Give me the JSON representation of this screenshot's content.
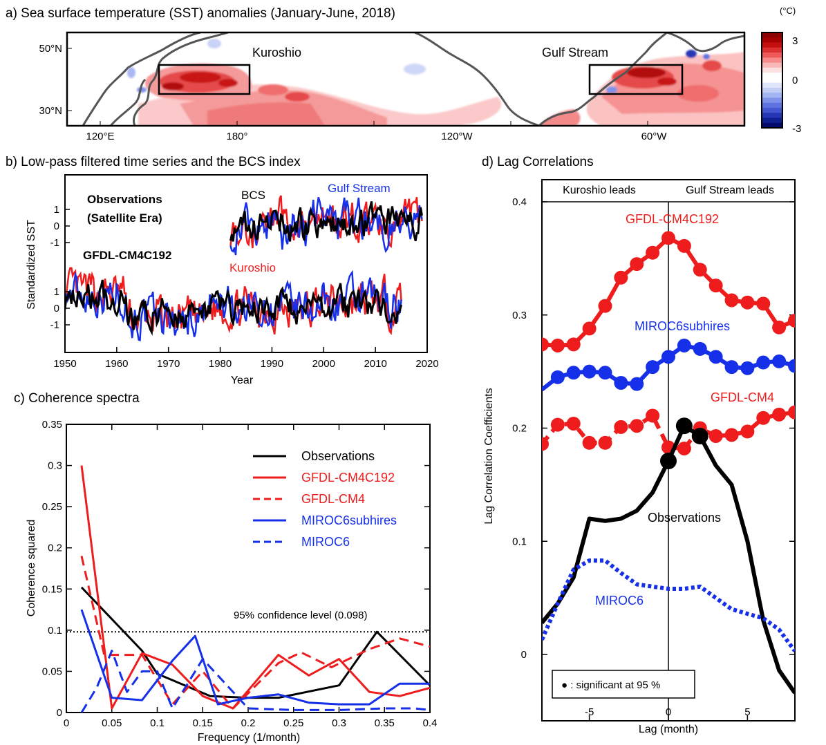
{
  "panels": {
    "a": {
      "title": "a) Sea surface temperature (SST) anomalies (January-June, 2018)",
      "unit": "(°C)",
      "colorbar_ticks": [
        "3",
        "0",
        "-3"
      ],
      "colorbar_colors": [
        "#8b0000",
        "#a60000",
        "#c50f0f",
        "#dd3030",
        "#ee5a5a",
        "#f78a8a",
        "#fbb8b8",
        "#fde1e1",
        "#ffffff",
        "#ffffff",
        "#dfe5fb",
        "#c3cef7",
        "#a3b4f2",
        "#8093ea",
        "#5f73e0",
        "#4256d0",
        "#2537b5",
        "#102090",
        "#040a6b"
      ],
      "y_ticks": [
        "50°N",
        "30°N"
      ],
      "x_ticks": [
        "120°E",
        "180°",
        "120°W",
        "60°W"
      ],
      "labels": {
        "kuroshio": "Kuroshio",
        "gulf_stream": "Gulf Stream"
      }
    },
    "b": {
      "title": "b) Low-pass filtered time series and the BCS index",
      "obs_label_1": "Observations",
      "obs_label_2": "(Satellite Era)",
      "model_label": "GFDL-CM4C192",
      "bcs_label": "BCS",
      "gulf_label": "Gulf Stream",
      "kuroshio_label": "Kuroshio",
      "ylabel": "Standardized SST",
      "xlabel": "Year",
      "y_ticks": [
        "1",
        "0",
        "-1"
      ],
      "x_ticks": [
        "1950",
        "1960",
        "1970",
        "1980",
        "1990",
        "2000",
        "2010",
        "2020"
      ]
    },
    "c": {
      "title": "c) Coherence spectra",
      "conf_label": "95% confidence level (0.098)",
      "xlabel": "Frequency (1/month)",
      "ylabel": "Coherence squared",
      "x_ticks": [
        "0",
        "0.05",
        "0.1",
        "0.15",
        "0.2",
        "0.25",
        "0.3",
        "0.35",
        "0.4"
      ],
      "y_ticks": [
        "0",
        "0.05",
        "0.1",
        "0.15",
        "0.2",
        "0.25",
        "0.3",
        "0.35"
      ],
      "legend": [
        "Observations",
        "GFDL-CM4C192",
        "GFDL-CM4",
        "MIROC6subhires",
        "MIROC6"
      ]
    },
    "d": {
      "title": "d) Lag Correlations",
      "kuroshio_leads": "Kuroshio leads",
      "gulf_leads": "Gulf Stream leads",
      "xlabel": "Lag (month)",
      "ylabel": "Lag Correlation Coefficients",
      "x_ticks": [
        "-5",
        "0",
        "5"
      ],
      "y_ticks": [
        "0.4",
        "0.3",
        "0.2",
        "0.1",
        "0"
      ],
      "labels": {
        "gfdl_c192": "GFDL-CM4C192",
        "miroc_sub": "MIROC6subhires",
        "gfdl_cm4": "GFDL-CM4",
        "obs": "Observations",
        "miroc6": "MIROC6"
      },
      "sig_legend": "● : significant at 95 %"
    }
  },
  "colors": {
    "obs": "#000000",
    "red": "#ee1c1c",
    "blue": "#1530e8"
  },
  "chart_data": [
    {
      "type": "heatmap",
      "title": "a) Sea surface temperature (SST) anomalies (January-June, 2018)",
      "colorbar_range": [
        -3,
        3
      ],
      "colorbar_unit": "(°C)",
      "boxes": [
        "Kuroshio",
        "Gulf Stream"
      ]
    },
    {
      "type": "line",
      "title": "b) Low-pass filtered time series and the BCS index",
      "xlabel": "Year",
      "ylabel": "Standardized SST",
      "xlim": [
        1950,
        2020
      ],
      "series": [
        {
          "name": "BCS",
          "color": "#000000"
        },
        {
          "name": "Gulf Stream",
          "color": "#1530e8"
        },
        {
          "name": "Kuroshio",
          "color": "#ee1c1c"
        }
      ]
    },
    {
      "type": "line",
      "title": "c) Coherence spectra",
      "xlabel": "Frequency (1/month)",
      "ylabel": "Coherence squared",
      "xlim": [
        0,
        0.4
      ],
      "ylim": [
        0,
        0.35
      ],
      "confidence_level": 0.098,
      "series": [
        {
          "name": "Observations",
          "style": "solid",
          "color": "#000000",
          "x": [
            0.0167,
            0.0833,
            0.1,
            0.1583,
            0.2,
            0.2333,
            0.3,
            0.3417,
            0.4
          ],
          "y": [
            0.152,
            0.075,
            0.047,
            0.02,
            0.018,
            0.018,
            0.033,
            0.098,
            0.033
          ]
        },
        {
          "name": "GFDL-CM4C192",
          "style": "solid",
          "color": "#ee1c1c",
          "x": [
            0.0167,
            0.05,
            0.0833,
            0.1167,
            0.15,
            0.1833,
            0.2333,
            0.2667,
            0.3,
            0.3333,
            0.3667,
            0.4
          ],
          "y": [
            0.3,
            0.005,
            0.072,
            0.058,
            0.02,
            0.005,
            0.07,
            0.045,
            0.065,
            0.025,
            0.02,
            0.03
          ]
        },
        {
          "name": "GFDL-CM4",
          "style": "dashed",
          "color": "#ee1c1c",
          "x": [
            0.0167,
            0.0417,
            0.0833,
            0.1167,
            0.15,
            0.1833,
            0.2333,
            0.2583,
            0.2917,
            0.3333,
            0.3667,
            0.4
          ],
          "y": [
            0.19,
            0.07,
            0.07,
            0.01,
            0.05,
            0.005,
            0.06,
            0.073,
            0.055,
            0.077,
            0.09,
            0.08
          ]
        },
        {
          "name": "MIROC6subhires",
          "style": "solid",
          "color": "#1530e8",
          "x": [
            0.0167,
            0.05,
            0.0833,
            0.1167,
            0.1417,
            0.1667,
            0.2,
            0.2333,
            0.2667,
            0.3,
            0.3333,
            0.3667,
            0.4
          ],
          "y": [
            0.125,
            0.018,
            0.015,
            0.063,
            0.093,
            0.01,
            0.018,
            0.022,
            0.012,
            0.01,
            0.01,
            0.035,
            0.035
          ]
        },
        {
          "name": "MIROC6",
          "style": "dashed",
          "color": "#1530e8",
          "x": [
            0.0167,
            0.0333,
            0.05,
            0.0667,
            0.0833,
            0.1,
            0.1167,
            0.15,
            0.2,
            0.25,
            0.3,
            0.35,
            0.3833,
            0.4
          ],
          "y": [
            0.0,
            0.03,
            0.075,
            0.025,
            0.05,
            0.05,
            0.005,
            0.065,
            0.005,
            0.003,
            0.003,
            0.005,
            0.005,
            0.003
          ]
        }
      ]
    },
    {
      "type": "line",
      "title": "d) Lag Correlations",
      "xlabel": "Lag (month)",
      "ylabel": "Lag Correlation Coefficients",
      "xlim": [
        -8,
        8
      ],
      "ylim": [
        -0.04,
        0.4
      ],
      "series": [
        {
          "name": "GFDL-CM4C192",
          "style": "solid",
          "color": "#ee1c1c",
          "x": [
            -8,
            -7,
            -6,
            -5,
            -4,
            -3,
            -2,
            -1,
            0,
            1,
            2,
            3,
            4,
            5,
            6,
            7,
            8
          ],
          "y": [
            0.274,
            0.273,
            0.274,
            0.288,
            0.308,
            0.333,
            0.345,
            0.355,
            0.368,
            0.361,
            0.34,
            0.326,
            0.313,
            0.311,
            0.31,
            0.289,
            0.295
          ],
          "significant": [
            true,
            true,
            true,
            true,
            true,
            true,
            true,
            true,
            true,
            true,
            true,
            true,
            true,
            true,
            true,
            true,
            true
          ]
        },
        {
          "name": "MIROC6subhires",
          "style": "solid",
          "color": "#1530e8",
          "x": [
            -8,
            -7,
            -6,
            -5,
            -4,
            -3,
            -2,
            -1,
            0,
            1,
            2,
            3,
            4,
            5,
            6,
            7,
            8
          ],
          "y": [
            0.234,
            0.245,
            0.249,
            0.25,
            0.249,
            0.24,
            0.239,
            0.254,
            0.263,
            0.273,
            0.27,
            0.263,
            0.254,
            0.253,
            0.258,
            0.259,
            0.255
          ],
          "significant": [
            false,
            true,
            true,
            true,
            true,
            true,
            true,
            true,
            true,
            true,
            true,
            true,
            true,
            true,
            true,
            true,
            true
          ]
        },
        {
          "name": "GFDL-CM4",
          "style": "dashed",
          "color": "#ee1c1c",
          "x": [
            -8,
            -7,
            -6,
            -5,
            -4,
            -3,
            -2,
            -1,
            0,
            1,
            2,
            3,
            4,
            5,
            6,
            7,
            8
          ],
          "y": [
            0.186,
            0.203,
            0.204,
            0.187,
            0.187,
            0.201,
            0.202,
            0.211,
            0.183,
            0.182,
            0.2,
            0.193,
            0.194,
            0.197,
            0.209,
            0.212,
            0.214
          ],
          "significant": [
            true,
            true,
            true,
            true,
            true,
            true,
            true,
            true,
            true,
            true,
            true,
            true,
            true,
            true,
            true,
            true,
            true
          ]
        },
        {
          "name": "Observations",
          "style": "solid",
          "color": "#000000",
          "x": [
            -8,
            -7,
            -6,
            -5,
            -4,
            -3,
            -2,
            -1,
            0,
            1,
            2,
            3,
            4,
            5,
            6,
            7,
            8
          ],
          "y": [
            0.028,
            0.045,
            0.068,
            0.12,
            0.118,
            0.12,
            0.127,
            0.143,
            0.171,
            0.202,
            0.193,
            0.167,
            0.15,
            0.1,
            0.03,
            -0.014,
            -0.034
          ],
          "significant": [
            false,
            false,
            false,
            false,
            false,
            false,
            false,
            false,
            true,
            true,
            true,
            false,
            false,
            false,
            false,
            false,
            false
          ]
        },
        {
          "name": "MIROC6",
          "style": "dotted",
          "color": "#1530e8",
          "x": [
            -8,
            -7,
            -6,
            -5,
            -4,
            -3,
            -2,
            -1,
            0,
            1,
            2,
            3,
            4,
            5,
            6,
            7,
            8
          ],
          "y": [
            0.013,
            0.045,
            0.075,
            0.083,
            0.083,
            0.072,
            0.062,
            0.06,
            0.058,
            0.058,
            0.06,
            0.05,
            0.04,
            0.036,
            0.032,
            0.022,
            0.003
          ],
          "significant": [
            false,
            false,
            false,
            false,
            false,
            false,
            false,
            false,
            false,
            false,
            false,
            false,
            false,
            false,
            false,
            false,
            false
          ]
        }
      ]
    }
  ]
}
